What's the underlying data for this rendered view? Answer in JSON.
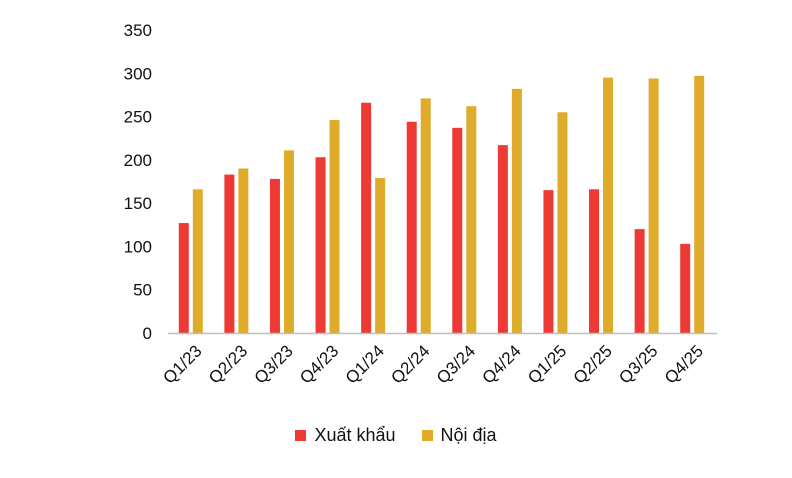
{
  "chart_data": {
    "type": "bar",
    "categories": [
      "Q1/23",
      "Q2/23",
      "Q3/23",
      "Q4/23",
      "Q1/24",
      "Q2/24",
      "Q3/24",
      "Q4/24",
      "Q1/25",
      "Q2/25",
      "Q3/25",
      "Q4/25"
    ],
    "series": [
      {
        "name": "Xuất khẩu",
        "color": "#ee3a34",
        "values": [
          127,
          183,
          178,
          203,
          266,
          244,
          237,
          217,
          165,
          166,
          120,
          103
        ]
      },
      {
        "name": "Nội địa",
        "color": "#dfab2a",
        "values": [
          166,
          190,
          211,
          246,
          179,
          271,
          262,
          282,
          255,
          295,
          294,
          297
        ]
      }
    ],
    "y_ticks": [
      "0",
      "50",
      "100",
      "150",
      "200",
      "250",
      "300",
      "350"
    ],
    "ylim": [
      0,
      350
    ],
    "grid": false,
    "legend_position": "bottom-center"
  }
}
